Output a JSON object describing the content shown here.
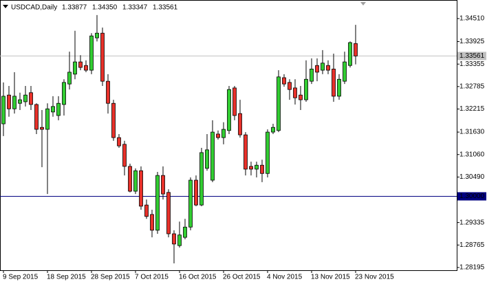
{
  "chart_data": {
    "type": "candlestick",
    "title": "USDCAD,Daily",
    "info_labels": [
      "1.33877",
      "1.34350",
      "1.33347",
      "1.33561"
    ],
    "categories": [
      "9 Sep 2015",
      null,
      null,
      null,
      null,
      null,
      null,
      null,
      "18 Sep 2015",
      null,
      null,
      null,
      null,
      null,
      null,
      null,
      "28 Sep 2015",
      null,
      null,
      null,
      null,
      null,
      null,
      null,
      "7 Oct 2015",
      null,
      null,
      null,
      null,
      null,
      null,
      null,
      "16 Oct 2015",
      null,
      null,
      null,
      null,
      null,
      null,
      null,
      "26 Oct 2015",
      null,
      null,
      null,
      null,
      null,
      null,
      null,
      "4 Nov 2015",
      null,
      null,
      null,
      null,
      null,
      null,
      null,
      "13 Nov 2015",
      null,
      null,
      null,
      null,
      null,
      null,
      null,
      "23 Nov 2015"
    ],
    "open": [
      1.3184,
      1.3257,
      1.3222,
      1.3236,
      1.324,
      1.3263,
      1.3233,
      1.3175,
      1.317,
      1.3214,
      1.3205,
      1.3233,
      1.3285,
      1.331,
      1.3341,
      1.3332,
      1.332,
      1.3402,
      1.3414,
      1.3292,
      1.3236,
      1.3149,
      1.3132,
      1.3076,
      1.3013,
      1.3065,
      1.2978,
      1.2954,
      1.2914,
      1.3053,
      1.301,
      1.2905,
      1.2875,
      1.2896,
      1.2922,
      1.3041,
      1.2978,
      1.3071,
      1.3041,
      1.3158,
      1.3149,
      1.3167,
      1.3275,
      1.321,
      1.3156,
      1.3076,
      1.3069,
      1.3079,
      1.3058,
      1.3163,
      1.3167,
      1.3301,
      1.3289,
      1.3275,
      1.3257,
      1.3245,
      1.3292,
      1.3332,
      1.332,
      1.3332,
      1.3323,
      1.3254,
      1.3292,
      1.3332,
      1.33877
    ],
    "high": [
      1.3289,
      1.328,
      1.3315,
      1.3263,
      1.328,
      1.328,
      1.3236,
      1.3219,
      1.3236,
      1.3254,
      1.3254,
      1.3297,
      1.3367,
      1.342,
      1.3358,
      1.3345,
      1.3414,
      1.346,
      1.3428,
      1.331,
      1.3245,
      1.3158,
      1.3141,
      1.3083,
      1.3071,
      1.3076,
      1.2992,
      1.2966,
      1.3062,
      1.3076,
      1.3018,
      1.2914,
      1.2936,
      1.2943,
      1.3048,
      1.3053,
      1.3123,
      1.3158,
      1.3193,
      1.3167,
      1.3188,
      1.328,
      1.328,
      1.3245,
      1.3163,
      1.3088,
      1.3088,
      1.3093,
      1.317,
      1.3184,
      1.332,
      1.331,
      1.3297,
      1.3297,
      1.328,
      1.3345,
      1.335,
      1.335,
      1.3371,
      1.3345,
      1.3362,
      1.331,
      1.3367,
      1.3393,
      1.3435
    ],
    "low": [
      1.3153,
      1.3202,
      1.321,
      1.3219,
      1.3228,
      1.3219,
      1.3158,
      1.3074,
      1.3006,
      1.3202,
      1.3193,
      1.3205,
      1.3271,
      1.3297,
      1.332,
      1.3315,
      1.331,
      1.3393,
      1.328,
      1.321,
      1.3141,
      1.3123,
      1.3053,
      1.301,
      1.3006,
      1.2966,
      1.2943,
      1.2896,
      1.2905,
      1.2992,
      1.2896,
      1.283,
      1.287,
      1.2891,
      1.2914,
      1.2975,
      1.2975,
      1.3065,
      1.3036,
      1.3144,
      1.3132,
      1.3158,
      1.3193,
      1.3149,
      1.3053,
      1.3053,
      1.3048,
      1.3036,
      1.3048,
      1.3158,
      1.3163,
      1.3278,
      1.3245,
      1.3233,
      1.3219,
      1.324,
      1.3285,
      1.3292,
      1.331,
      1.331,
      1.324,
      1.3245,
      1.3285,
      1.3327,
      1.33347
    ],
    "close": [
      1.3254,
      1.3222,
      1.3254,
      1.3245,
      1.3257,
      1.3233,
      1.317,
      1.317,
      1.3222,
      1.3228,
      1.3236,
      1.3289,
      1.3315,
      1.3341,
      1.3327,
      1.332,
      1.3407,
      1.3414,
      1.3292,
      1.3236,
      1.3149,
      1.3128,
      1.3076,
      1.3013,
      1.3065,
      1.2975,
      1.2949,
      1.2914,
      1.3053,
      1.3006,
      1.2905,
      1.2879,
      1.2902,
      1.2922,
      1.3041,
      1.2978,
      1.3111,
      1.3118,
      1.3163,
      1.3149,
      1.317,
      1.3271,
      1.3205,
      1.3156,
      1.3069,
      1.3069,
      1.3079,
      1.3058,
      1.3163,
      1.3175,
      1.3303,
      1.3285,
      1.3271,
      1.325,
      1.3245,
      1.3297,
      1.3323,
      1.3315,
      1.3338,
      1.332,
      1.3254,
      1.3297,
      1.3341,
      1.339,
      1.33561
    ],
    "up_color": "#32cd32",
    "down_color": "#e8312a",
    "ylim": [
      1.28125,
      1.34981
    ],
    "yticks": [
      {
        "value": 1.3451,
        "label": "1.34510"
      },
      1.33925,
      1.33355,
      1.32785,
      1.32215,
      {
        "value": 1.3163,
        "label": "1.31630"
      },
      {
        "value": 1.3106,
        "label": "1.31060"
      },
      {
        "value": 1.3049,
        "label": "1.30490"
      },
      1.29335,
      1.28765,
      1.28195
    ],
    "price_line": 1.33561,
    "hline": {
      "value": 1.3,
      "label": "1.30000",
      "color": "#000080"
    }
  }
}
